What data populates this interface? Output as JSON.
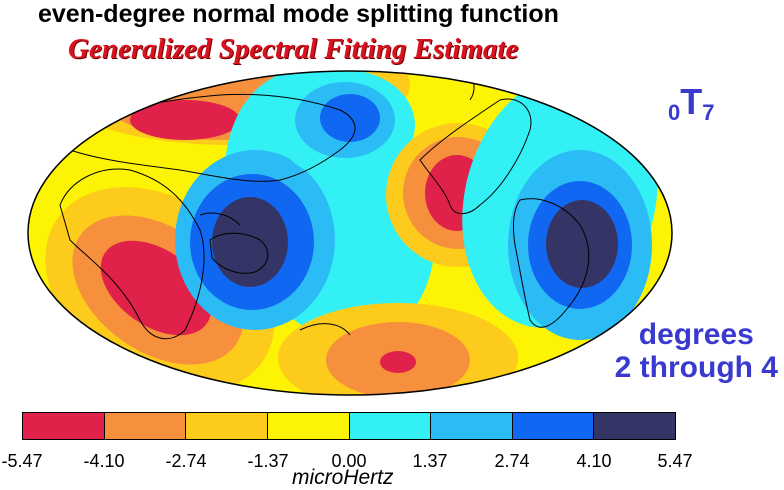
{
  "title": "even-degree normal mode splitting function",
  "subtitle": "Generalized Spectral Fitting Estimate",
  "mode": {
    "subscript": "0",
    "letter": "T",
    "index": "7"
  },
  "degrees": {
    "line1": "degrees",
    "line2": "2 through 4"
  },
  "colorbar": {
    "unit": "microHertz",
    "tick_labels": [
      "-5.47",
      "-4.10",
      "-2.74",
      "-1.37",
      "0.00",
      "1.37",
      "2.74",
      "4.10",
      "5.47"
    ],
    "colors": [
      "#e0224a",
      "#f7903d",
      "#fccb1c",
      "#fdf405",
      "#33f0f4",
      "#2cbcf5",
      "#1068f2",
      "#343566"
    ]
  },
  "map": {
    "projection": "Hammer / Mollweide",
    "background_color": "#fdf405",
    "features": [
      {
        "name": "africa-negative-anomaly",
        "value": -5.47
      },
      {
        "name": "arctic-negative-anomaly",
        "value": -4.1
      },
      {
        "name": "north-america-negative-anomaly",
        "value": -5.47
      },
      {
        "name": "south-pacific-negative-anomaly",
        "value": -5.47
      },
      {
        "name": "west-pacific-positive-anomaly",
        "value": 5.47
      },
      {
        "name": "south-america-positive-anomaly",
        "value": 5.47
      },
      {
        "name": "north-pacific-positive-anomaly",
        "value": 4.1
      }
    ]
  }
}
